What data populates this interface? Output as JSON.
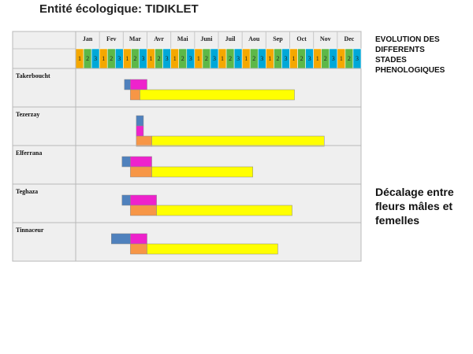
{
  "page": {
    "title": "Entité écologique: TIDIKLET",
    "side_title": "EVOLUTION DES\nDIFFERENTS\nSTADES\nPHENOLOGIQUES",
    "side_note": "Décalage entre\nfleurs mâles et\nfemelles"
  },
  "chart_data": {
    "type": "gantt",
    "months": [
      "Jan",
      "Fev",
      "Mar",
      "Avr",
      "Mai",
      "Juni",
      "Juil",
      "Aou",
      "Sep",
      "Oct",
      "Nov",
      "Dec"
    ],
    "decades": [
      "1",
      "2",
      "3"
    ],
    "decade_colors": [
      "#f5a800",
      "#5db848",
      "#00a8d8"
    ],
    "stage_colors": {
      "blue": "#4f81bd",
      "magenta": "#ee22cc",
      "orange": "#f79646",
      "yellow": "#ffff00"
    },
    "rows": [
      {
        "label": "Takerboucht",
        "bars": [
          {
            "color": "blue",
            "start": 2.05,
            "end": 2.3,
            "level": "top"
          },
          {
            "color": "magenta",
            "start": 2.3,
            "end": 3.0,
            "level": "top"
          },
          {
            "color": "orange",
            "start": 2.3,
            "end": 2.7,
            "level": "bottom"
          },
          {
            "color": "yellow",
            "start": 2.7,
            "end": 9.2,
            "level": "bottom"
          }
        ]
      },
      {
        "label": "Tezerzay",
        "bars": [
          {
            "color": "blue",
            "start": 2.55,
            "end": 2.85,
            "level": "top"
          },
          {
            "color": "magenta",
            "start": 2.55,
            "end": 2.85,
            "level": "mid"
          },
          {
            "color": "orange",
            "start": 2.55,
            "end": 3.2,
            "level": "bottom"
          },
          {
            "color": "yellow",
            "start": 3.2,
            "end": 10.45,
            "level": "bottom"
          }
        ]
      },
      {
        "label": "Elferrana",
        "bars": [
          {
            "color": "blue",
            "start": 1.95,
            "end": 2.3,
            "level": "top"
          },
          {
            "color": "magenta",
            "start": 2.3,
            "end": 3.2,
            "level": "top"
          },
          {
            "color": "orange",
            "start": 2.3,
            "end": 3.2,
            "level": "bottom"
          },
          {
            "color": "yellow",
            "start": 3.2,
            "end": 7.45,
            "level": "bottom"
          }
        ]
      },
      {
        "label": "Teghaza",
        "bars": [
          {
            "color": "blue",
            "start": 1.95,
            "end": 2.3,
            "level": "top"
          },
          {
            "color": "magenta",
            "start": 2.3,
            "end": 3.4,
            "level": "top"
          },
          {
            "color": "orange",
            "start": 2.3,
            "end": 3.4,
            "level": "bottom"
          },
          {
            "color": "yellow",
            "start": 3.4,
            "end": 9.1,
            "level": "bottom"
          }
        ]
      },
      {
        "label": "Tinnaceur",
        "bars": [
          {
            "color": "blue",
            "start": 1.5,
            "end": 2.3,
            "level": "top"
          },
          {
            "color": "magenta",
            "start": 2.3,
            "end": 3.0,
            "level": "top"
          },
          {
            "color": "orange",
            "start": 2.3,
            "end": 3.0,
            "level": "bottom"
          },
          {
            "color": "yellow",
            "start": 3.0,
            "end": 8.5,
            "level": "bottom"
          }
        ]
      }
    ]
  }
}
